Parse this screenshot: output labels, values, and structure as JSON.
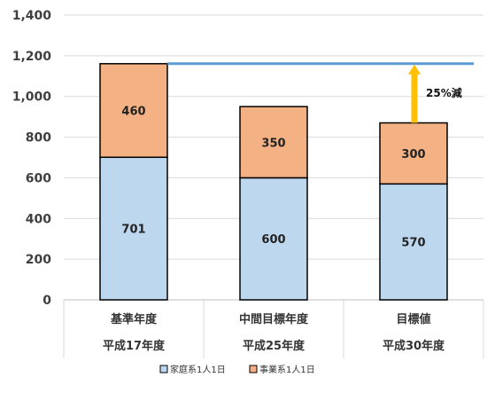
{
  "chart_data": {
    "type": "bar",
    "stacked": true,
    "categories": [
      [
        "基準年度",
        "平成17年度"
      ],
      [
        "中間目標年度",
        "平成25年度"
      ],
      [
        "目標値",
        "平成30年度"
      ]
    ],
    "series": [
      {
        "name": "家庭系1人1日",
        "values": [
          701,
          600,
          570
        ],
        "color": "#bdd7ee"
      },
      {
        "name": "事業系1人1日",
        "values": [
          460,
          350,
          300
        ],
        "color": "#f4b183"
      }
    ],
    "ylim": [
      0,
      1400
    ],
    "yticks": [
      0,
      200,
      400,
      600,
      800,
      1000,
      1200,
      1400
    ],
    "ytick_labels": [
      "0",
      "200",
      "400",
      "600",
      "800",
      "1,000",
      "1,200",
      "1,400"
    ],
    "grid": true,
    "legend_position": "bottom",
    "reference_line": {
      "value": 1161,
      "color": "#5b9bd5"
    },
    "annotation": {
      "text": "25%減",
      "from": 870,
      "to": 1161,
      "color": "#ffc000"
    },
    "title": "",
    "xlabel": "",
    "ylabel": ""
  }
}
